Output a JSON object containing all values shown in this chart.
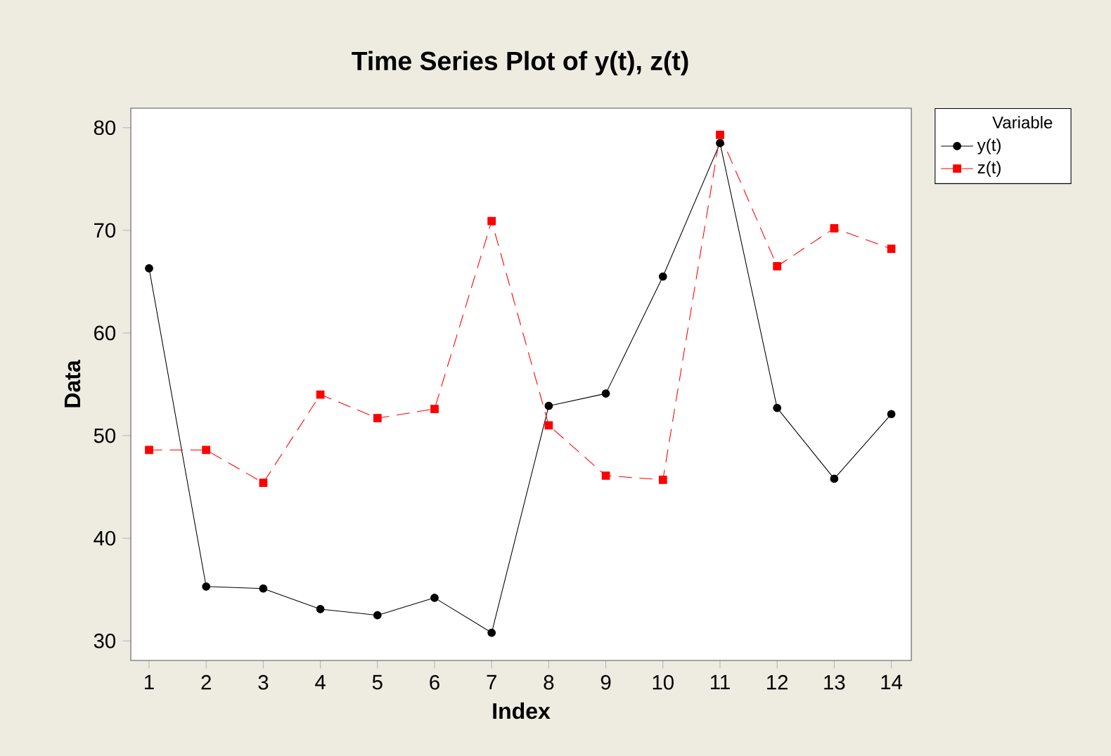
{
  "chart_data": {
    "type": "line",
    "title": "Time Series Plot of y(t), z(t)",
    "xlabel": "Index",
    "ylabel": "Data",
    "legend_title": "Variable",
    "legend": "top right",
    "x": [
      1,
      2,
      3,
      4,
      5,
      6,
      7,
      8,
      9,
      10,
      11,
      12,
      13,
      14
    ],
    "xlim": [
      0.68,
      14.35
    ],
    "ylim": [
      28.1,
      81.9
    ],
    "xticks": [
      1,
      2,
      3,
      4,
      5,
      6,
      7,
      8,
      9,
      10,
      11,
      12,
      13,
      14
    ],
    "yticks": [
      30,
      40,
      50,
      60,
      70,
      80
    ],
    "series": [
      {
        "name": "y(t)",
        "color": "#000000",
        "marker": "circle",
        "line_style": "solid",
        "values": [
          66.3,
          35.3,
          35.1,
          33.1,
          32.5,
          34.2,
          30.8,
          52.9,
          54.1,
          65.5,
          78.5,
          52.7,
          45.8,
          52.1
        ]
      },
      {
        "name": "z(t)",
        "color": "#ff0000",
        "marker": "square",
        "line_style": "dashed",
        "values": [
          48.6,
          48.6,
          45.4,
          54.0,
          51.7,
          52.6,
          70.9,
          51.0,
          46.1,
          45.7,
          79.3,
          66.5,
          70.2,
          68.2
        ]
      }
    ]
  }
}
